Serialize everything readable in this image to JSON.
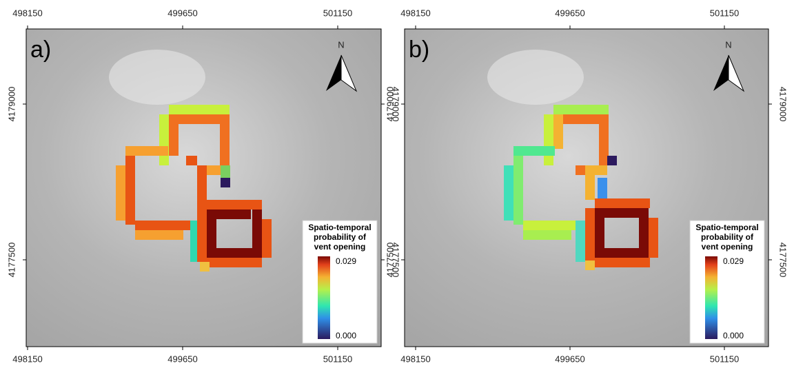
{
  "panels": [
    {
      "label": "a)",
      "north": "N",
      "xticks": [
        498150,
        499650,
        501150
      ],
      "yticks": [
        4179000,
        4177500
      ],
      "legend": {
        "title": [
          "Spatio-temporal",
          "probability of",
          "vent opening"
        ],
        "max": "0.029",
        "min": "0.000"
      }
    },
    {
      "label": "b)",
      "north": "N",
      "xticks": [
        498150,
        499650,
        501150
      ],
      "yticks": [
        4179000,
        4177500
      ],
      "legend": {
        "title": [
          "Spatio-temporal",
          "probability of",
          "vent opening"
        ],
        "max": "0.029",
        "min": "0.000"
      }
    }
  ]
}
